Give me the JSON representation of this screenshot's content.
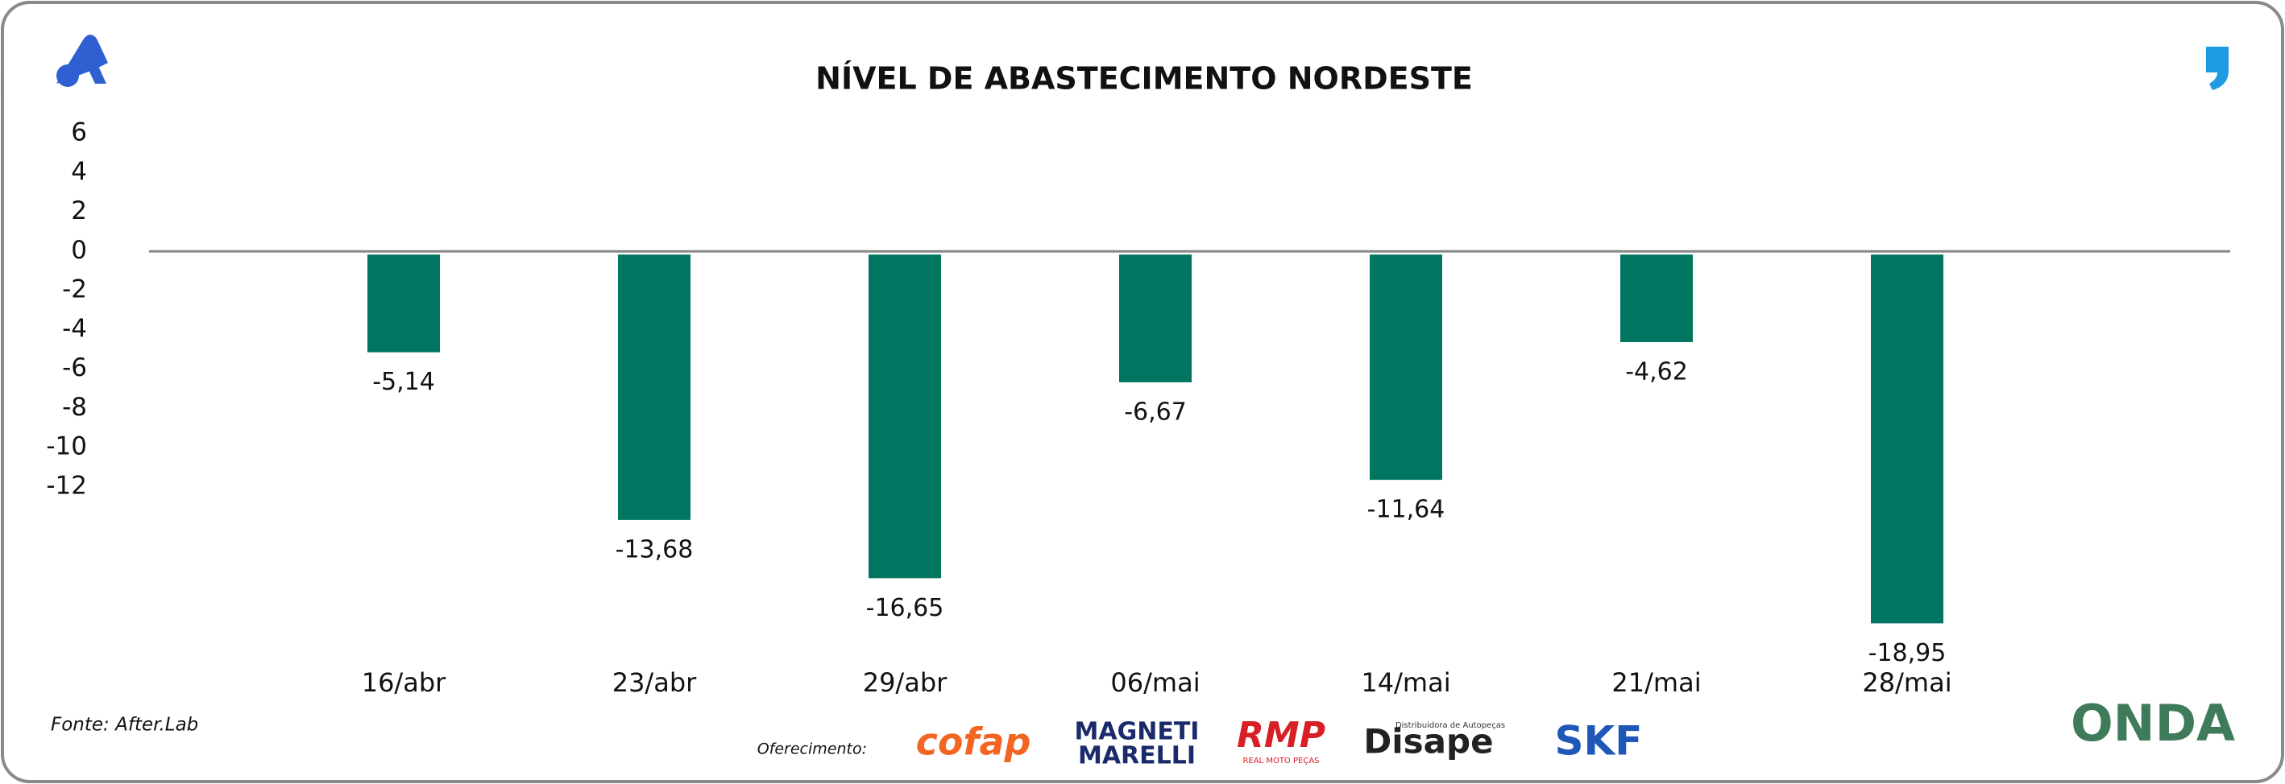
{
  "chart_data": {
    "type": "bar",
    "title": "NÍVEL DE ABASTECIMENTO NORDESTE",
    "categories": [
      "16/abr",
      "23/abr",
      "29/abr",
      "06/mai",
      "14/mai",
      "21/mai",
      "28/mai"
    ],
    "values": [
      -5.14,
      -13.68,
      -16.65,
      -6.67,
      -11.64,
      -4.62,
      -18.95
    ],
    "value_labels": [
      "-5,14",
      "-13,68",
      "-16,65",
      "-6,67",
      "-11,64",
      "-4,62",
      "-18,95"
    ],
    "color": "#007660",
    "ylim": [
      -20,
      6
    ],
    "yticks": [
      6,
      4,
      2,
      0,
      -2,
      -4,
      -6,
      -8,
      -10,
      -12
    ],
    "grid": false
  },
  "footer": {
    "source": "Fonte: After.Lab",
    "sponsor_label": "Oferecimento:",
    "sponsors": [
      "cofap",
      "MAGNETI",
      "MARELLI",
      "RMP",
      "REAL MOTO PEÇAS",
      "Distribuidora de Autopeças",
      "Disape",
      "SKF"
    ],
    "brand": "ONDA"
  }
}
